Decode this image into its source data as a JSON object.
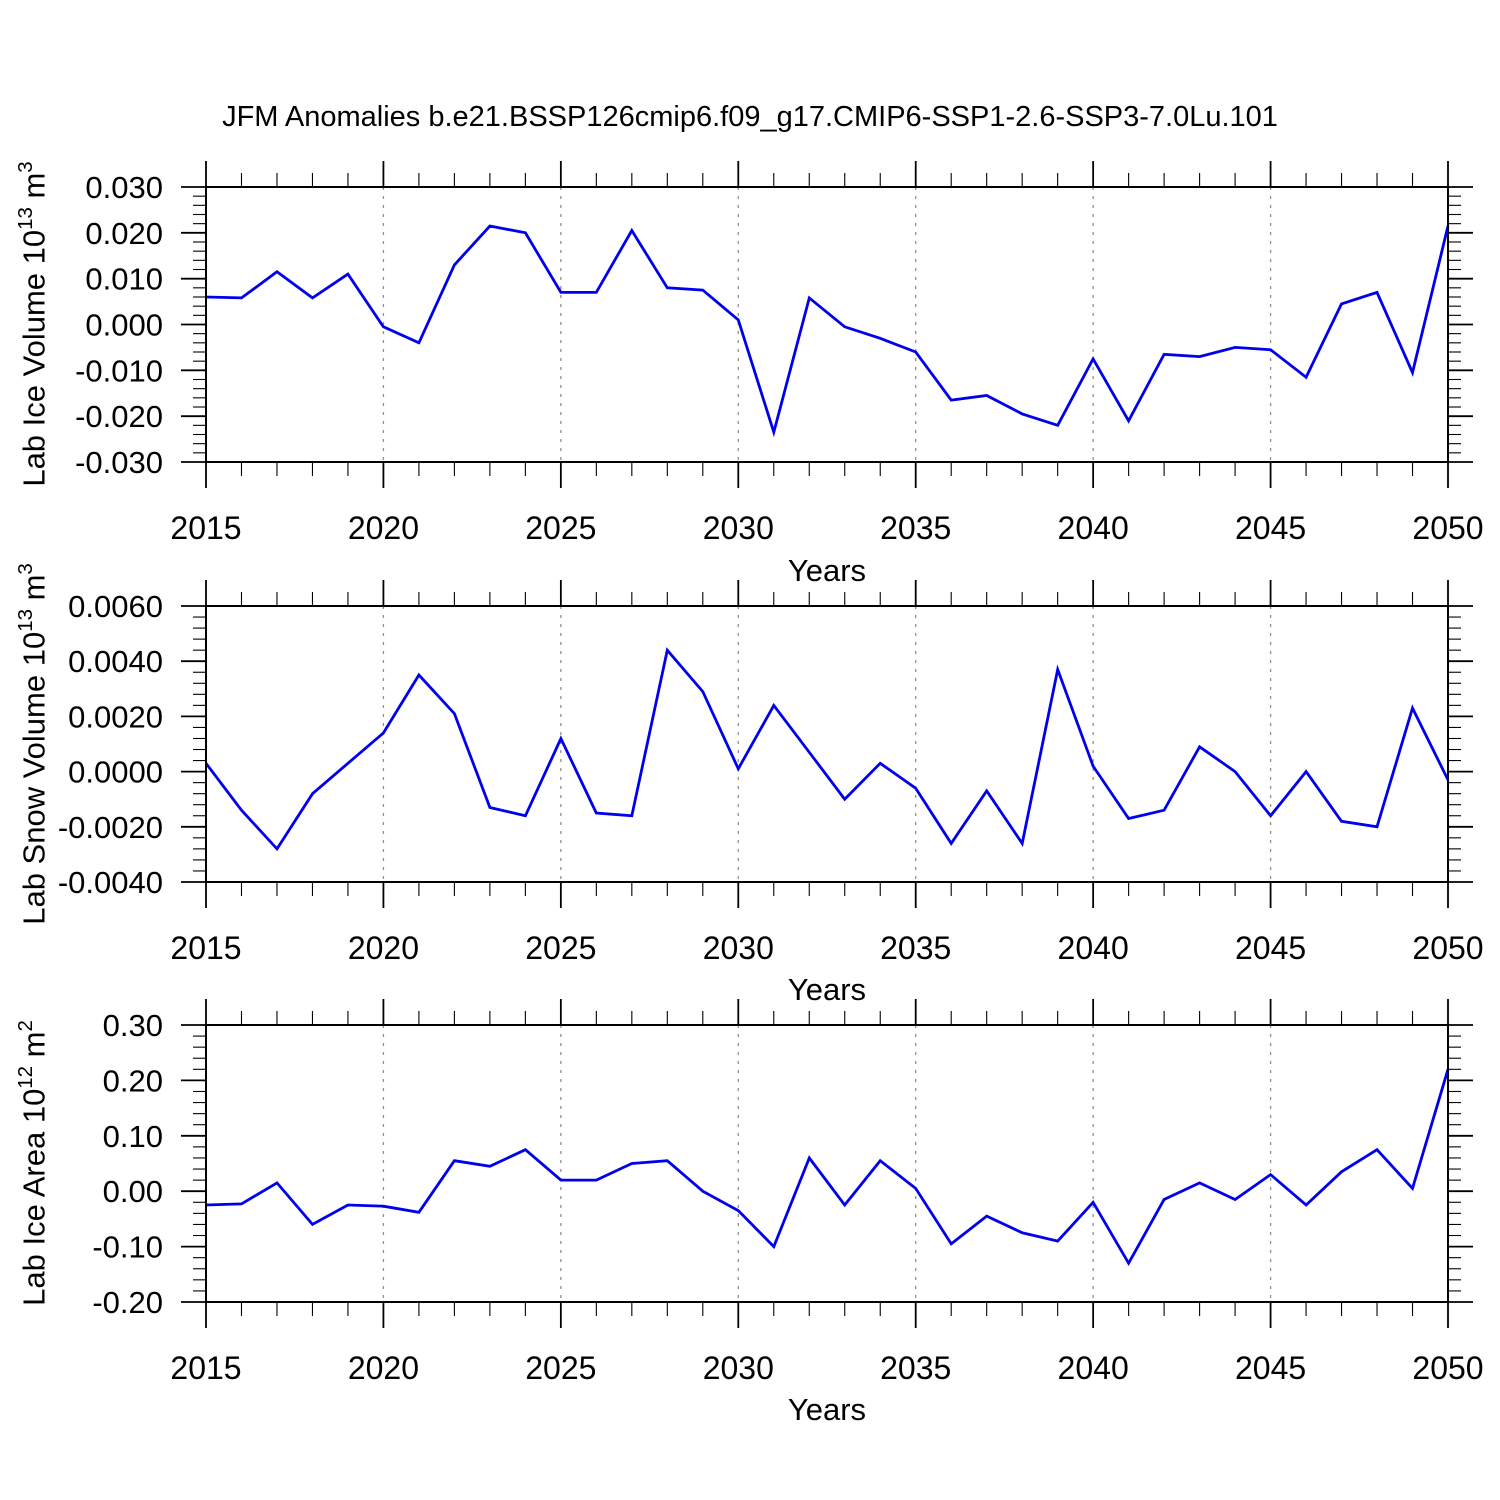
{
  "title": "JFM Anomalies b.e21.BSSP126cmip6.f09_g17.CMIP6-SSP1-2.6-SSP3-7.0Lu.101",
  "style": {
    "line_color": "#0000ee",
    "frame_color": "#000000",
    "grid_color": "#909090",
    "text_color": "#000000"
  },
  "x_axis": {
    "label": "Years",
    "min": 2015,
    "max": 2050,
    "major_ticks": [
      2015,
      2020,
      2025,
      2030,
      2035,
      2040,
      2045,
      2050
    ],
    "major_tick_labels": [
      "2015",
      "2020",
      "2025",
      "2030",
      "2035",
      "2040",
      "2045",
      "2050"
    ],
    "minor_step": 1,
    "gridlines": [
      2020,
      2025,
      2030,
      2035,
      2040,
      2045
    ]
  },
  "chart_data": [
    {
      "type": "line",
      "name": "lab-ice-volume",
      "ylabel": "Lab Ice Volume 10^13 m^3",
      "ylabel_parts": {
        "prefix": "Lab Ice Volume 10",
        "exp": "13",
        "unit": " m",
        "unit_exp": "3"
      },
      "xlabel": "Years",
      "ylim": [
        -0.03,
        0.03
      ],
      "yticks": [
        {
          "value": 0.03,
          "label": "0.030"
        },
        {
          "value": 0.02,
          "label": "0.020"
        },
        {
          "value": 0.01,
          "label": "0.010"
        },
        {
          "value": 0.0,
          "label": "0.000"
        },
        {
          "value": -0.01,
          "label": "-0.010"
        },
        {
          "value": -0.02,
          "label": "-0.020"
        },
        {
          "value": -0.03,
          "label": "-0.030"
        }
      ],
      "y_minor_step": 0.002,
      "x": [
        2015,
        2016,
        2017,
        2018,
        2019,
        2020,
        2021,
        2022,
        2023,
        2024,
        2025,
        2026,
        2027,
        2028,
        2029,
        2030,
        2031,
        2032,
        2033,
        2034,
        2035,
        2036,
        2037,
        2038,
        2039,
        2040,
        2041,
        2042,
        2043,
        2044,
        2045,
        2046,
        2047,
        2048,
        2049,
        2050
      ],
      "values": [
        0.006,
        0.0058,
        0.0115,
        0.0058,
        0.011,
        -0.0005,
        -0.004,
        0.013,
        0.0215,
        0.02,
        0.007,
        0.007,
        0.0205,
        0.008,
        0.0075,
        0.001,
        -0.0235,
        0.0058,
        -0.0005,
        -0.003,
        -0.006,
        -0.0165,
        -0.0155,
        -0.0195,
        -0.022,
        -0.0075,
        -0.021,
        -0.0065,
        -0.007,
        -0.005,
        -0.0055,
        -0.0115,
        0.0045,
        0.007,
        -0.0105,
        0.0215
      ]
    },
    {
      "type": "line",
      "name": "lab-snow-volume",
      "ylabel": "Lab Snow Volume 10^13 m^3",
      "ylabel_parts": {
        "prefix": "Lab Snow Volume 10",
        "exp": "13",
        "unit": " m",
        "unit_exp": "3"
      },
      "xlabel": "Years",
      "ylim": [
        -0.004,
        0.006
      ],
      "yticks": [
        {
          "value": 0.006,
          "label": "0.0060"
        },
        {
          "value": 0.004,
          "label": "0.0040"
        },
        {
          "value": 0.002,
          "label": "0.0020"
        },
        {
          "value": 0.0,
          "label": "0.0000"
        },
        {
          "value": -0.002,
          "label": "-0.0020"
        },
        {
          "value": -0.004,
          "label": "-0.0040"
        }
      ],
      "y_minor_step": 0.0004,
      "x": [
        2015,
        2016,
        2017,
        2018,
        2019,
        2020,
        2021,
        2022,
        2023,
        2024,
        2025,
        2026,
        2027,
        2028,
        2029,
        2030,
        2031,
        2032,
        2033,
        2034,
        2035,
        2036,
        2037,
        2038,
        2039,
        2040,
        2041,
        2042,
        2043,
        2044,
        2045,
        2046,
        2047,
        2048,
        2049,
        2050
      ],
      "values": [
        0.0003,
        -0.0014,
        -0.0028,
        -0.0008,
        0.0003,
        0.0014,
        0.0035,
        0.0021,
        -0.0013,
        -0.0016,
        0.0012,
        -0.0015,
        -0.0016,
        0.0044,
        0.0029,
        0.0001,
        0.0024,
        0.0007,
        -0.001,
        0.0003,
        -0.0006,
        -0.0026,
        -0.0007,
        -0.0026,
        0.0037,
        0.0002,
        -0.0017,
        -0.0014,
        0.0009,
        0.0,
        -0.0016,
        0.0,
        -0.0018,
        -0.002,
        0.0023,
        -0.0003
      ]
    },
    {
      "type": "line",
      "name": "lab-ice-area",
      "ylabel": "Lab Ice Area 10^12 m^2",
      "ylabel_parts": {
        "prefix": "Lab Ice Area 10",
        "exp": "12",
        "unit": " m",
        "unit_exp": "2"
      },
      "xlabel": "Years",
      "ylim": [
        -0.2,
        0.3
      ],
      "yticks": [
        {
          "value": 0.3,
          "label": "0.30"
        },
        {
          "value": 0.2,
          "label": "0.20"
        },
        {
          "value": 0.1,
          "label": "0.10"
        },
        {
          "value": 0.0,
          "label": "0.00"
        },
        {
          "value": -0.1,
          "label": "-0.10"
        },
        {
          "value": -0.2,
          "label": "-0.20"
        }
      ],
      "y_minor_step": 0.02,
      "x": [
        2015,
        2016,
        2017,
        2018,
        2019,
        2020,
        2021,
        2022,
        2023,
        2024,
        2025,
        2026,
        2027,
        2028,
        2029,
        2030,
        2031,
        2032,
        2033,
        2034,
        2035,
        2036,
        2037,
        2038,
        2039,
        2040,
        2041,
        2042,
        2043,
        2044,
        2045,
        2046,
        2047,
        2048,
        2049,
        2050
      ],
      "values": [
        -0.025,
        -0.023,
        0.015,
        -0.06,
        -0.025,
        -0.027,
        -0.038,
        0.055,
        0.045,
        0.075,
        0.02,
        0.02,
        0.05,
        0.055,
        0.0,
        -0.035,
        -0.1,
        0.06,
        -0.025,
        0.055,
        0.005,
        -0.095,
        -0.045,
        -0.075,
        -0.09,
        -0.02,
        -0.13,
        -0.015,
        0.015,
        -0.015,
        0.03,
        -0.025,
        0.035,
        0.075,
        0.005,
        0.22
      ]
    }
  ]
}
